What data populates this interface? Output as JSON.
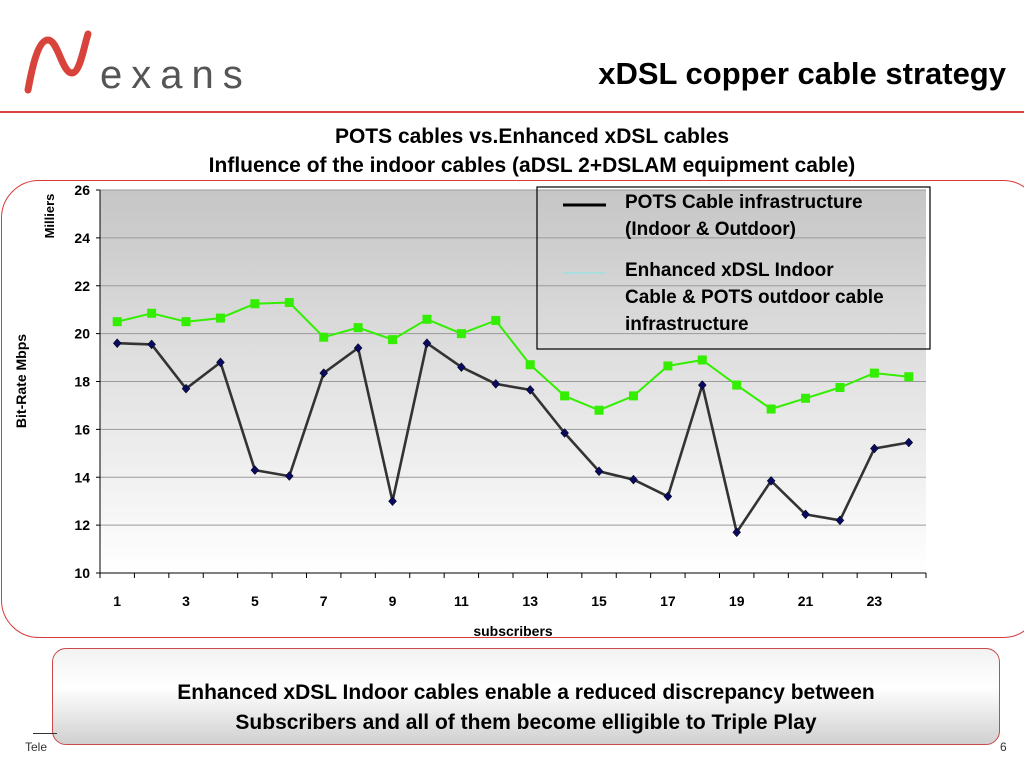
{
  "header": {
    "logo_text": "exans",
    "title": "xDSL copper cable strategy"
  },
  "colors": {
    "brand_red": "#d8443c",
    "series_pots": "#333333",
    "series_enhanced": "#33ee00",
    "marker_pots": "#0a0a60"
  },
  "chart_data": {
    "type": "line",
    "title": "POTS cables vs.Enhanced xDSL cables",
    "subtitle": "Influence of the indoor cables (aDSL 2+DSLAM equipment cable)",
    "xlabel": "subscribers",
    "ylabel": "Bit-Rate Mbps",
    "y_unit_label": "Milliers",
    "ylim": [
      10,
      26
    ],
    "yticks": [
      10,
      12,
      14,
      16,
      18,
      20,
      22,
      24,
      26
    ],
    "x": [
      1,
      2,
      3,
      4,
      5,
      6,
      7,
      8,
      9,
      10,
      11,
      12,
      13,
      14,
      15,
      16,
      17,
      18,
      19,
      20,
      21,
      22,
      23,
      24
    ],
    "xtick_labels": [
      "1",
      "3",
      "5",
      "7",
      "9",
      "11",
      "13",
      "15",
      "17",
      "19",
      "21",
      "23"
    ],
    "grid": true,
    "legend_position": "top-right",
    "series": [
      {
        "name": "POTS Cable infrastructure (Indoor & Outdoor)",
        "legend_lines": [
          "POTS Cable infrastructure",
          "(Indoor & Outdoor)"
        ],
        "legend_swatch_color": "#000000",
        "line_color": "#333333",
        "marker": "diamond",
        "values": [
          19.6,
          19.55,
          17.7,
          18.8,
          14.3,
          14.05,
          18.35,
          19.4,
          13.0,
          19.6,
          18.6,
          17.9,
          17.65,
          15.85,
          14.25,
          13.9,
          13.2,
          17.85,
          11.7,
          13.85,
          12.45,
          12.2,
          15.2,
          15.45
        ]
      },
      {
        "name": "Enhanced xDSL Indoor Cable & POTS outdoor cable infrastructure",
        "legend_lines": [
          "Enhanced xDSL Indoor",
          "Cable & POTS outdoor cable",
          "infrastructure"
        ],
        "legend_swatch_color": "#aadddd",
        "line_color": "#33ee00",
        "marker": "square",
        "values": [
          20.5,
          20.85,
          20.5,
          20.65,
          21.25,
          21.3,
          19.85,
          20.25,
          19.75,
          20.6,
          20.0,
          20.55,
          18.7,
          17.4,
          16.8,
          17.4,
          18.65,
          18.9,
          17.85,
          16.85,
          17.3,
          17.75,
          18.35,
          18.2
        ]
      }
    ]
  },
  "callout": {
    "line1": "Enhanced xDSL Indoor cables enable a reduced discrepancy between",
    "line2": "Subscribers and all of them become elligible to Triple Play"
  },
  "footer": {
    "left_text": "Tele",
    "page_number": "6"
  }
}
